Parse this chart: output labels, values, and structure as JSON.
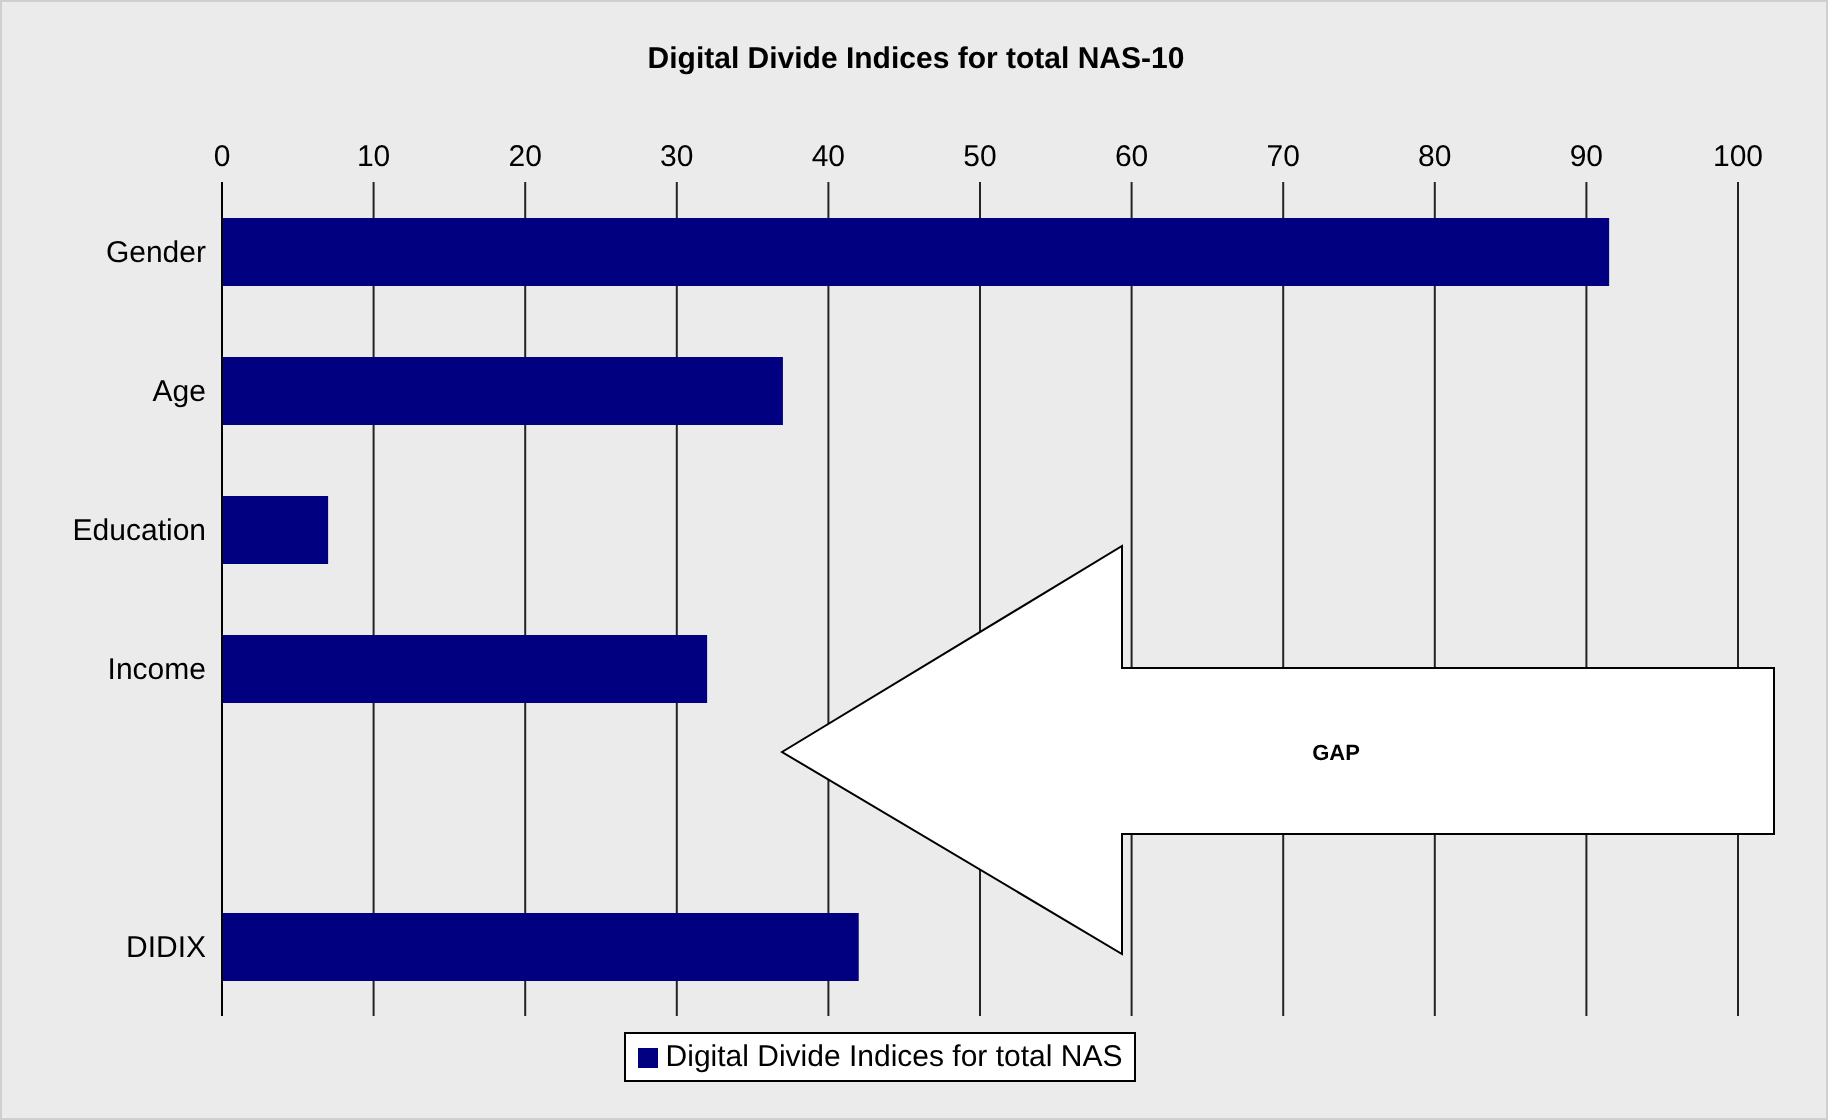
{
  "chart_data": {
    "type": "bar",
    "orientation": "horizontal",
    "title": "Digital Divide Indices for total NAS-10",
    "categories": [
      "Gender",
      "Age",
      "Education",
      "Income",
      null,
      "DIDIX"
    ],
    "series": [
      {
        "name": "Digital Divide Indices for total NAS",
        "color": "#000080",
        "values": [
          91.5,
          37,
          7,
          32,
          null,
          42
        ]
      }
    ],
    "xlim": [
      0,
      100
    ],
    "xticks": [
      0,
      10,
      20,
      30,
      40,
      50,
      60,
      70,
      80,
      90,
      100
    ],
    "grid": "x",
    "legend": "bottom",
    "annotations": [
      "GAP"
    ]
  }
}
